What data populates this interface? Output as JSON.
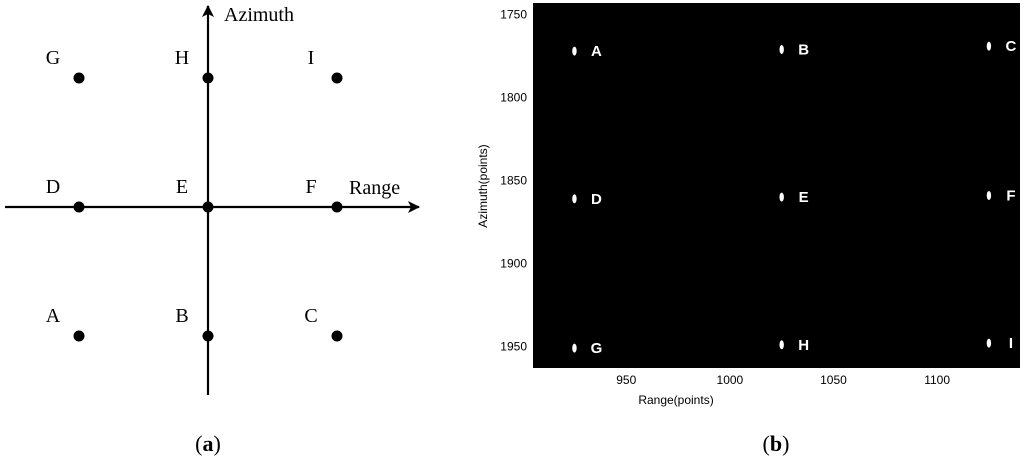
{
  "panel_a": {
    "caption_open": "(",
    "caption_letter": "a",
    "caption_close": ")",
    "vertical_axis_label": "Azimuth",
    "horizontal_axis_label": "Range",
    "points": [
      {
        "id": "A",
        "col": -1,
        "row": -1
      },
      {
        "id": "B",
        "col": 0,
        "row": -1
      },
      {
        "id": "C",
        "col": 1,
        "row": -1
      },
      {
        "id": "D",
        "col": -1,
        "row": 0
      },
      {
        "id": "E",
        "col": 0,
        "row": 0
      },
      {
        "id": "F",
        "col": 1,
        "row": 0
      },
      {
        "id": "G",
        "col": -1,
        "row": 1
      },
      {
        "id": "H",
        "col": 0,
        "row": 1
      },
      {
        "id": "I",
        "col": 1,
        "row": 1
      }
    ]
  },
  "panel_b": {
    "caption_open": "(",
    "caption_letter": "b",
    "caption_close": ")",
    "xlabel": "Range(points)",
    "ylabel": "Azimuth(points)",
    "xlim": [
      905,
      1140
    ],
    "ylim": [
      1743,
      1963
    ],
    "xticks": [
      950,
      1000,
      1050,
      1100
    ],
    "yticks": [
      1750,
      1800,
      1850,
      1900,
      1950
    ],
    "background_color": "#000000",
    "target_color": "#ffffff",
    "targets": [
      {
        "id": "A",
        "x": 925,
        "y": 1772
      },
      {
        "id": "B",
        "x": 1025,
        "y": 1771
      },
      {
        "id": "C",
        "x": 1125,
        "y": 1769
      },
      {
        "id": "D",
        "x": 925,
        "y": 1861
      },
      {
        "id": "E",
        "x": 1025,
        "y": 1860
      },
      {
        "id": "F",
        "x": 1125,
        "y": 1859
      },
      {
        "id": "G",
        "x": 925,
        "y": 1951
      },
      {
        "id": "H",
        "x": 1025,
        "y": 1949
      },
      {
        "id": "I",
        "x": 1125,
        "y": 1948
      }
    ]
  }
}
